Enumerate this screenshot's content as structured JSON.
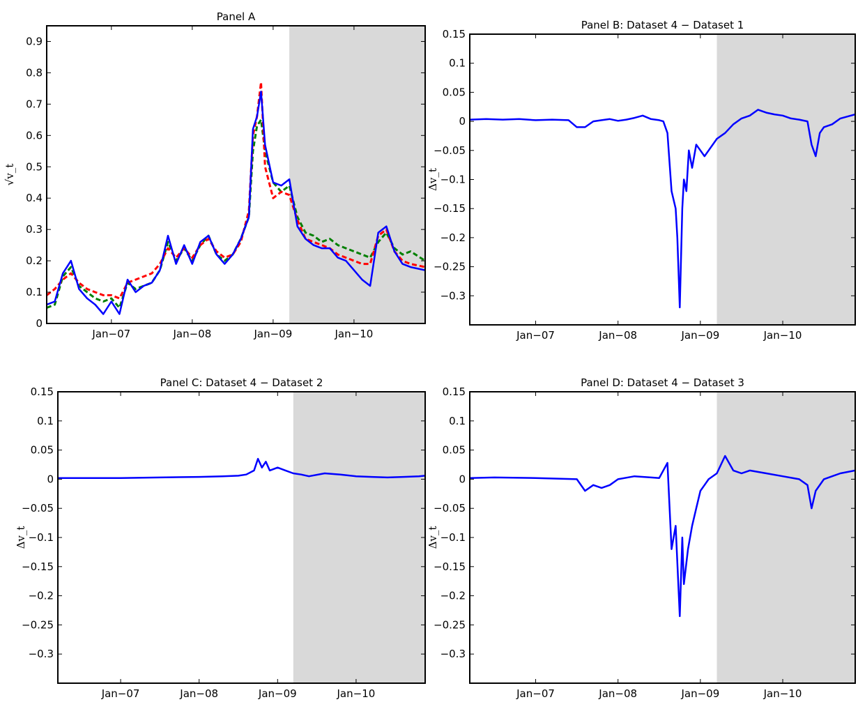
{
  "figure": {
    "x_tick_labels": [
      "Jan−07",
      "Jan−08",
      "Jan−09",
      "Jan−10"
    ],
    "shade_color": "#d9d9d9",
    "colors": {
      "blue": "#0000ff",
      "green": "#008000",
      "red": "#ff0000"
    }
  },
  "chart_data": [
    {
      "id": "panel-a",
      "type": "line",
      "title": "Panel A",
      "ylabel": "√v_t",
      "xlim": [
        2006.2,
        2010.88
      ],
      "ylim": [
        0,
        0.95
      ],
      "yticks": [
        0,
        0.1,
        0.2,
        0.3,
        0.4,
        0.5,
        0.6,
        0.7,
        0.8,
        0.9
      ],
      "ytick_labels": [
        "0",
        "0.1",
        "0.2",
        "0.3",
        "0.4",
        "0.5",
        "0.6",
        "0.7",
        "0.8",
        "0.9"
      ],
      "xticks": [
        2007.0,
        2008.0,
        2009.0,
        2010.0
      ],
      "shaded_region": [
        2009.2,
        2010.88
      ],
      "grid": false,
      "series": [
        {
          "color": "green",
          "style": "dashed",
          "x": [
            2006.2,
            2006.3,
            2006.4,
            2006.5,
            2006.6,
            2006.7,
            2006.8,
            2006.9,
            2007.0,
            2007.1,
            2007.2,
            2007.3,
            2007.4,
            2007.5,
            2007.6,
            2007.7,
            2007.8,
            2007.9,
            2008.0,
            2008.1,
            2008.2,
            2008.3,
            2008.4,
            2008.5,
            2008.6,
            2008.7,
            2008.75,
            2008.8,
            2008.85,
            2008.9,
            2009.0,
            2009.1,
            2009.2,
            2009.3,
            2009.4,
            2009.5,
            2009.6,
            2009.7,
            2009.8,
            2009.9,
            2010.0,
            2010.1,
            2010.2,
            2010.3,
            2010.4,
            2010.5,
            2010.6,
            2010.7,
            2010.88
          ],
          "y": [
            0.05,
            0.06,
            0.15,
            0.18,
            0.12,
            0.1,
            0.08,
            0.07,
            0.08,
            0.05,
            0.13,
            0.11,
            0.12,
            0.13,
            0.17,
            0.26,
            0.2,
            0.24,
            0.2,
            0.25,
            0.28,
            0.22,
            0.2,
            0.22,
            0.27,
            0.34,
            0.55,
            0.63,
            0.65,
            0.55,
            0.45,
            0.42,
            0.44,
            0.34,
            0.29,
            0.28,
            0.26,
            0.27,
            0.25,
            0.24,
            0.23,
            0.22,
            0.21,
            0.26,
            0.29,
            0.24,
            0.22,
            0.23,
            0.2
          ]
        },
        {
          "color": "red",
          "style": "dashed",
          "x": [
            2006.2,
            2006.3,
            2006.4,
            2006.5,
            2006.6,
            2006.7,
            2006.8,
            2006.9,
            2007.0,
            2007.1,
            2007.2,
            2007.3,
            2007.4,
            2007.5,
            2007.6,
            2007.7,
            2007.8,
            2007.9,
            2008.0,
            2008.1,
            2008.2,
            2008.3,
            2008.4,
            2008.5,
            2008.6,
            2008.7,
            2008.75,
            2008.8,
            2008.85,
            2008.9,
            2009.0,
            2009.1,
            2009.2,
            2009.3,
            2009.4,
            2009.5,
            2009.6,
            2009.7,
            2009.8,
            2009.9,
            2010.0,
            2010.1,
            2010.2,
            2010.3,
            2010.4,
            2010.5,
            2010.6,
            2010.7,
            2010.88
          ],
          "y": [
            0.09,
            0.11,
            0.14,
            0.16,
            0.13,
            0.11,
            0.1,
            0.09,
            0.09,
            0.08,
            0.13,
            0.14,
            0.15,
            0.16,
            0.19,
            0.24,
            0.21,
            0.24,
            0.21,
            0.25,
            0.27,
            0.23,
            0.21,
            0.22,
            0.26,
            0.36,
            0.6,
            0.66,
            0.77,
            0.5,
            0.4,
            0.42,
            0.41,
            0.33,
            0.27,
            0.26,
            0.25,
            0.24,
            0.22,
            0.21,
            0.2,
            0.19,
            0.19,
            0.28,
            0.3,
            0.23,
            0.2,
            0.19,
            0.18
          ]
        },
        {
          "color": "blue",
          "style": "solid",
          "x": [
            2006.2,
            2006.3,
            2006.4,
            2006.5,
            2006.6,
            2006.7,
            2006.8,
            2006.9,
            2007.0,
            2007.1,
            2007.2,
            2007.3,
            2007.4,
            2007.5,
            2007.6,
            2007.7,
            2007.8,
            2007.9,
            2008.0,
            2008.1,
            2008.2,
            2008.3,
            2008.4,
            2008.5,
            2008.6,
            2008.7,
            2008.75,
            2008.8,
            2008.85,
            2008.9,
            2009.0,
            2009.1,
            2009.2,
            2009.3,
            2009.4,
            2009.5,
            2009.6,
            2009.7,
            2009.8,
            2009.9,
            2010.0,
            2010.1,
            2010.2,
            2010.3,
            2010.4,
            2010.5,
            2010.6,
            2010.7,
            2010.88
          ],
          "y": [
            0.06,
            0.07,
            0.16,
            0.2,
            0.11,
            0.08,
            0.06,
            0.03,
            0.07,
            0.03,
            0.14,
            0.1,
            0.12,
            0.13,
            0.17,
            0.28,
            0.19,
            0.25,
            0.19,
            0.26,
            0.28,
            0.22,
            0.19,
            0.22,
            0.27,
            0.34,
            0.62,
            0.66,
            0.74,
            0.57,
            0.45,
            0.44,
            0.46,
            0.31,
            0.27,
            0.25,
            0.24,
            0.24,
            0.21,
            0.2,
            0.17,
            0.14,
            0.12,
            0.29,
            0.31,
            0.23,
            0.19,
            0.18,
            0.17
          ]
        }
      ]
    },
    {
      "id": "panel-b",
      "type": "line",
      "title": "Panel B: Dataset 4 − Dataset 1",
      "ylabel": "Δv_t",
      "xlim": [
        2006.2,
        2010.88
      ],
      "ylim": [
        -0.35,
        0.15
      ],
      "yticks": [
        0.15,
        0.1,
        0.05,
        0,
        -0.05,
        -0.1,
        -0.15,
        -0.2,
        -0.25,
        -0.3
      ],
      "ytick_labels": [
        "0.15",
        "0.1",
        "0.05",
        "0",
        "−0.05",
        "−0.1",
        "−0.15",
        "−0.2",
        "−0.25",
        "−0.3"
      ],
      "xticks": [
        2007.0,
        2008.0,
        2009.0,
        2010.0
      ],
      "shaded_region": [
        2009.2,
        2010.88
      ],
      "grid": false,
      "series": [
        {
          "color": "blue",
          "style": "solid",
          "x": [
            2006.2,
            2006.4,
            2006.6,
            2006.8,
            2007.0,
            2007.2,
            2007.4,
            2007.5,
            2007.6,
            2007.7,
            2007.8,
            2007.9,
            2008.0,
            2008.1,
            2008.2,
            2008.3,
            2008.4,
            2008.5,
            2008.55,
            2008.6,
            2008.65,
            2008.7,
            2008.72,
            2008.75,
            2008.78,
            2008.8,
            2008.83,
            2008.86,
            2008.9,
            2008.95,
            2009.0,
            2009.05,
            2009.1,
            2009.2,
            2009.3,
            2009.4,
            2009.5,
            2009.6,
            2009.7,
            2009.8,
            2009.9,
            2010.0,
            2010.1,
            2010.2,
            2010.3,
            2010.35,
            2010.4,
            2010.45,
            2010.5,
            2010.6,
            2010.7,
            2010.88
          ],
          "y": [
            0.003,
            0.004,
            0.003,
            0.004,
            0.002,
            0.003,
            0.002,
            -0.01,
            -0.01,
            0.0,
            0.002,
            0.004,
            0.001,
            0.003,
            0.006,
            0.01,
            0.004,
            0.002,
            0.0,
            -0.02,
            -0.12,
            -0.15,
            -0.2,
            -0.32,
            -0.15,
            -0.1,
            -0.12,
            -0.05,
            -0.08,
            -0.04,
            -0.05,
            -0.06,
            -0.05,
            -0.03,
            -0.02,
            -0.005,
            0.005,
            0.01,
            0.02,
            0.015,
            0.012,
            0.01,
            0.005,
            0.003,
            0.0,
            -0.04,
            -0.06,
            -0.02,
            -0.01,
            -0.005,
            0.005,
            0.012
          ]
        }
      ]
    },
    {
      "id": "panel-c",
      "type": "line",
      "title": "Panel C: Dataset 4 − Dataset 2",
      "ylabel": "Δv_t",
      "xlim": [
        2006.2,
        2010.88
      ],
      "ylim": [
        -0.35,
        0.15
      ],
      "yticks": [
        0.15,
        0.1,
        0.05,
        0,
        -0.05,
        -0.1,
        -0.15,
        -0.2,
        -0.25,
        -0.3
      ],
      "ytick_labels": [
        "0.15",
        "0.1",
        "0.05",
        "0",
        "−0.05",
        "−0.1",
        "−0.15",
        "−0.2",
        "−0.25",
        "−0.3"
      ],
      "xticks": [
        2007.0,
        2008.0,
        2009.0,
        2010.0
      ],
      "shaded_region": [
        2009.2,
        2010.88
      ],
      "grid": false,
      "series": [
        {
          "color": "blue",
          "style": "solid",
          "x": [
            2006.2,
            2006.5,
            2007.0,
            2007.5,
            2008.0,
            2008.3,
            2008.5,
            2008.6,
            2008.7,
            2008.75,
            2008.8,
            2008.85,
            2008.9,
            2009.0,
            2009.1,
            2009.2,
            2009.3,
            2009.4,
            2009.6,
            2009.8,
            2010.0,
            2010.2,
            2010.4,
            2010.6,
            2010.8,
            2010.88
          ],
          "y": [
            0.002,
            0.002,
            0.002,
            0.003,
            0.004,
            0.005,
            0.006,
            0.008,
            0.015,
            0.035,
            0.02,
            0.03,
            0.015,
            0.02,
            0.015,
            0.01,
            0.008,
            0.005,
            0.01,
            0.008,
            0.005,
            0.004,
            0.003,
            0.004,
            0.005,
            0.006
          ]
        }
      ]
    },
    {
      "id": "panel-d",
      "type": "line",
      "title": "Panel D: Dataset 4 − Dataset 3",
      "ylabel": "Δv_t",
      "xlim": [
        2006.2,
        2010.88
      ],
      "ylim": [
        -0.35,
        0.15
      ],
      "yticks": [
        0.15,
        0.1,
        0.05,
        0,
        -0.05,
        -0.1,
        -0.15,
        -0.2,
        -0.25,
        -0.3
      ],
      "ytick_labels": [
        "0.15",
        "0.1",
        "0.05",
        "0",
        "−0.05",
        "−0.1",
        "−0.15",
        "−0.2",
        "−0.25",
        "−0.3"
      ],
      "xticks": [
        2007.0,
        2008.0,
        2009.0,
        2010.0
      ],
      "shaded_region": [
        2009.2,
        2010.88
      ],
      "grid": false,
      "series": [
        {
          "color": "blue",
          "style": "solid",
          "x": [
            2006.2,
            2006.5,
            2007.0,
            2007.5,
            2007.6,
            2007.7,
            2007.8,
            2007.9,
            2008.0,
            2008.2,
            2008.4,
            2008.5,
            2008.6,
            2008.65,
            2008.7,
            2008.75,
            2008.78,
            2008.8,
            2008.85,
            2008.9,
            2008.95,
            2009.0,
            2009.05,
            2009.1,
            2009.2,
            2009.3,
            2009.4,
            2009.5,
            2009.6,
            2009.8,
            2010.0,
            2010.2,
            2010.3,
            2010.35,
            2010.4,
            2010.5,
            2010.6,
            2010.7,
            2010.88
          ],
          "y": [
            0.002,
            0.003,
            0.002,
            0.0,
            -0.02,
            -0.01,
            -0.015,
            -0.01,
            0.0,
            0.005,
            0.003,
            0.002,
            0.028,
            -0.12,
            -0.08,
            -0.235,
            -0.1,
            -0.18,
            -0.12,
            -0.08,
            -0.05,
            -0.02,
            -0.01,
            0.0,
            0.01,
            0.04,
            0.015,
            0.01,
            0.015,
            0.01,
            0.005,
            0.0,
            -0.01,
            -0.05,
            -0.02,
            0.0,
            0.005,
            0.01,
            0.015
          ]
        }
      ]
    }
  ]
}
